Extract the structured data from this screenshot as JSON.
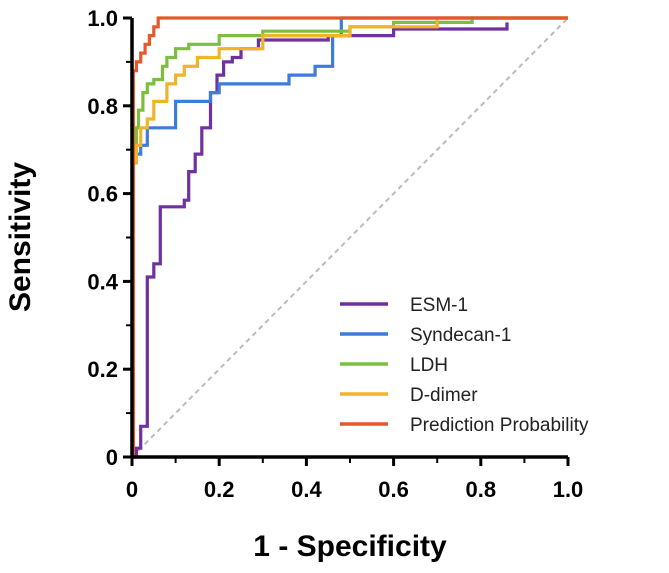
{
  "chart_data": {
    "type": "line",
    "title": "",
    "xlabel": "1 - Specificity",
    "ylabel": "Sensitivity",
    "xlim": [
      0,
      1.0
    ],
    "ylim": [
      0,
      1.0
    ],
    "xticks": [
      "0",
      "0.2",
      "0.4",
      "0.6",
      "0.8",
      "1.0"
    ],
    "yticks": [
      "0",
      "0.2",
      "0.4",
      "0.6",
      "0.8",
      "1.0"
    ],
    "grid": false,
    "legend_position": "bottom-right",
    "reference_line": {
      "name": "chance",
      "x": [
        0,
        1
      ],
      "y": [
        0,
        1
      ],
      "style": "dashed",
      "color": "#bbbbbb"
    },
    "series": [
      {
        "name": "ESM-1",
        "color": "#7030a0",
        "x": [
          0,
          0.01,
          0.01,
          0.02,
          0.02,
          0.035,
          0.035,
          0.05,
          0.05,
          0.065,
          0.065,
          0.12,
          0.12,
          0.13,
          0.13,
          0.145,
          0.145,
          0.16,
          0.16,
          0.18,
          0.18,
          0.195,
          0.195,
          0.21,
          0.21,
          0.23,
          0.23,
          0.25,
          0.25,
          0.29,
          0.29,
          0.45,
          0.45,
          0.6,
          0.6,
          0.86,
          0.86
        ],
        "y": [
          0,
          0,
          0.02,
          0.02,
          0.07,
          0.07,
          0.41,
          0.41,
          0.44,
          0.44,
          0.57,
          0.57,
          0.585,
          0.585,
          0.65,
          0.65,
          0.69,
          0.69,
          0.75,
          0.75,
          0.83,
          0.83,
          0.87,
          0.87,
          0.9,
          0.9,
          0.91,
          0.91,
          0.93,
          0.93,
          0.95,
          0.95,
          0.96,
          0.96,
          0.975,
          0.975,
          0.99
        ]
      },
      {
        "name": "Syndecan-1",
        "color": "#3b7dd8",
        "x": [
          0,
          0.003,
          0.003,
          0.01,
          0.01,
          0.02,
          0.02,
          0.035,
          0.035,
          0.1,
          0.1,
          0.18,
          0.18,
          0.2,
          0.2,
          0.36,
          0.36,
          0.42,
          0.42,
          0.46,
          0.46,
          0.48,
          0.48,
          1.0
        ],
        "y": [
          0,
          0,
          0.67,
          0.67,
          0.69,
          0.69,
          0.71,
          0.71,
          0.75,
          0.75,
          0.81,
          0.81,
          0.83,
          0.83,
          0.85,
          0.85,
          0.87,
          0.87,
          0.89,
          0.89,
          0.96,
          0.96,
          1.0,
          1.0
        ]
      },
      {
        "name": "LDH",
        "color": "#7cbf3f",
        "x": [
          0,
          0.003,
          0.003,
          0.01,
          0.01,
          0.015,
          0.015,
          0.025,
          0.025,
          0.035,
          0.035,
          0.05,
          0.05,
          0.07,
          0.07,
          0.08,
          0.08,
          0.1,
          0.1,
          0.13,
          0.13,
          0.2,
          0.2,
          0.3,
          0.3,
          0.5,
          0.5,
          0.6,
          0.6,
          0.78,
          0.78,
          1.0
        ],
        "y": [
          0,
          0,
          0.71,
          0.71,
          0.75,
          0.75,
          0.79,
          0.79,
          0.83,
          0.83,
          0.85,
          0.85,
          0.86,
          0.86,
          0.89,
          0.89,
          0.91,
          0.91,
          0.93,
          0.93,
          0.94,
          0.94,
          0.96,
          0.96,
          0.97,
          0.97,
          0.98,
          0.98,
          0.99,
          0.99,
          1.0,
          1.0
        ]
      },
      {
        "name": "D-dimer",
        "color": "#f0b429",
        "x": [
          0,
          0.003,
          0.003,
          0.01,
          0.01,
          0.02,
          0.02,
          0.035,
          0.035,
          0.05,
          0.05,
          0.08,
          0.08,
          0.1,
          0.1,
          0.12,
          0.12,
          0.15,
          0.15,
          0.2,
          0.2,
          0.3,
          0.3,
          0.5,
          0.5,
          0.7,
          0.7,
          1.0
        ],
        "y": [
          0,
          0,
          0.67,
          0.67,
          0.71,
          0.71,
          0.75,
          0.75,
          0.77,
          0.77,
          0.81,
          0.81,
          0.85,
          0.85,
          0.87,
          0.87,
          0.89,
          0.89,
          0.91,
          0.91,
          0.93,
          0.93,
          0.96,
          0.96,
          0.98,
          0.98,
          1.0,
          1.0
        ]
      },
      {
        "name": "Prediction Probability",
        "color": "#e8572a",
        "x": [
          0,
          0.003,
          0.003,
          0.01,
          0.01,
          0.02,
          0.02,
          0.03,
          0.03,
          0.04,
          0.04,
          0.05,
          0.05,
          0.06,
          0.06,
          1.0
        ],
        "y": [
          0,
          0,
          0.88,
          0.88,
          0.9,
          0.9,
          0.92,
          0.92,
          0.94,
          0.94,
          0.96,
          0.96,
          0.98,
          0.98,
          1.0,
          1.0
        ]
      }
    ]
  }
}
